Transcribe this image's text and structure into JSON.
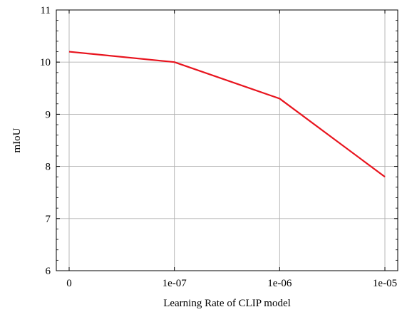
{
  "chart_data": {
    "type": "line",
    "title": "",
    "xlabel": "Learning Rate of CLIP model",
    "ylabel": "mIoU",
    "categories": [
      "0",
      "1e-07",
      "1e-06",
      "1e-05"
    ],
    "series": [
      {
        "values": [
          10.2,
          10.0,
          9.3,
          7.8
        ],
        "color": "#e8141e"
      }
    ],
    "ylim": [
      6,
      11
    ],
    "yticks": [
      6,
      7,
      8,
      9,
      10,
      11
    ],
    "grid": true
  }
}
